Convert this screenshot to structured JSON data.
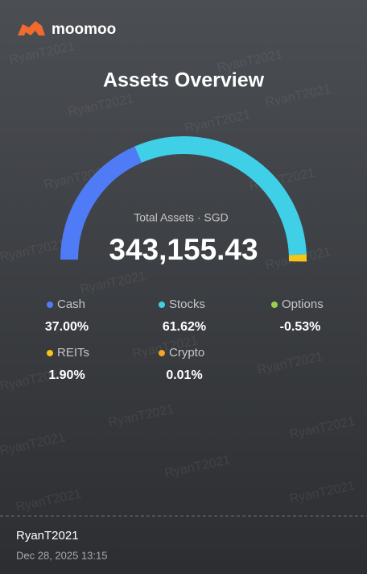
{
  "brand": "moomoo",
  "watermark": "RyanT2021",
  "chart_data": {
    "type": "half-donut",
    "title": "Assets Overview",
    "center_label": "Total Assets · SGD",
    "center_value": "343,155.43",
    "categories": [
      "Cash",
      "Stocks",
      "Options",
      "REITs",
      "Crypto"
    ],
    "values": [
      37.0,
      61.62,
      -0.53,
      1.9,
      0.01
    ],
    "value_labels": [
      "37.00%",
      "61.62%",
      "-0.53%",
      "1.90%",
      "0.01%"
    ],
    "colors": [
      "#4f7cf6",
      "#3fd0e8",
      "#9bd04b",
      "#f5c518",
      "#f5a524"
    ]
  },
  "footer": {
    "user": "RyanT2021",
    "date": "Dec 28, 2025 13:15"
  }
}
